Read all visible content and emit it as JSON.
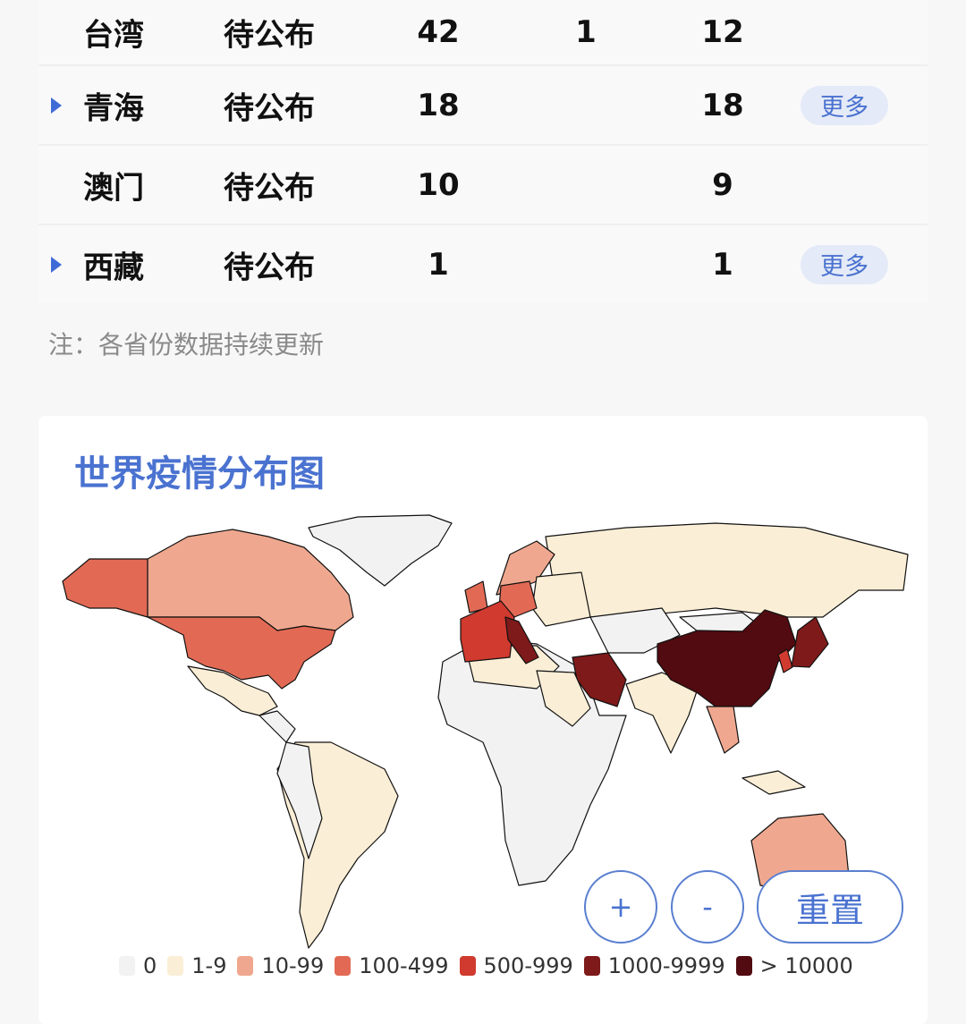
{
  "table": {
    "rows": [
      {
        "name": "台湾",
        "status": "待公布",
        "confirmed": "42",
        "col2": "1",
        "col3": "12",
        "expandable": false,
        "more": ""
      },
      {
        "name": "青海",
        "status": "待公布",
        "confirmed": "18",
        "col2": "",
        "col3": "18",
        "expandable": true,
        "more": "更多"
      },
      {
        "name": "澳门",
        "status": "待公布",
        "confirmed": "10",
        "col2": "",
        "col3": "9",
        "expandable": false,
        "more": ""
      },
      {
        "name": "西藏",
        "status": "待公布",
        "confirmed": "1",
        "col2": "",
        "col3": "1",
        "expandable": true,
        "more": "更多"
      }
    ]
  },
  "note": "注：各省份数据持续更新",
  "map_card": {
    "title": "世界疫情分布图",
    "controls": {
      "zoom_in": "+",
      "zoom_out": "-",
      "reset": "重置"
    },
    "legend": [
      {
        "label": "0",
        "color": "#f2f2f2"
      },
      {
        "label": "1-9",
        "color": "#fbeed6"
      },
      {
        "label": "10-99",
        "color": "#efa88f"
      },
      {
        "label": "100-499",
        "color": "#e26a55"
      },
      {
        "label": "500-999",
        "color": "#d03a2f"
      },
      {
        "label": "1000-9999",
        "color": "#7f1a1a"
      },
      {
        "label": "> 10000",
        "color": "#520b10"
      }
    ]
  }
}
